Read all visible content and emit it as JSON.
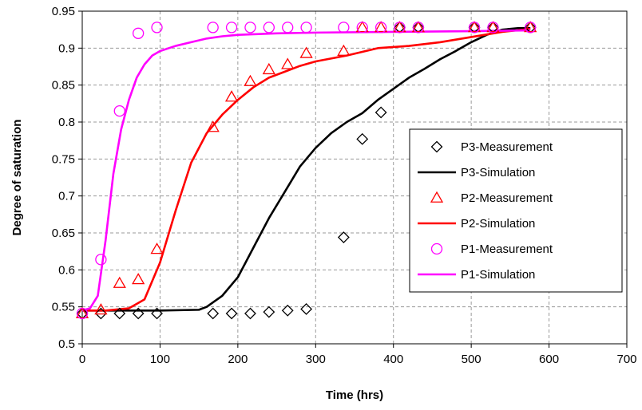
{
  "chart_data": {
    "type": "scatter",
    "title": "",
    "xlabel": "Time (hrs)",
    "ylabel": "Degree of saturation",
    "xlim": [
      0,
      700
    ],
    "ylim": [
      0.5,
      0.95
    ],
    "xticks": [
      0,
      100,
      200,
      300,
      400,
      500,
      600,
      700
    ],
    "yticks": [
      0.5,
      0.55,
      0.6,
      0.65,
      0.7,
      0.75,
      0.8,
      0.85,
      0.9,
      0.95
    ],
    "grid": true,
    "legend_position": "right",
    "series": [
      {
        "name": "P3-Measurement",
        "kind": "marker",
        "marker": "diamond",
        "color": "#000000",
        "x": [
          0,
          24,
          48,
          72,
          96,
          168,
          192,
          216,
          240,
          264,
          288,
          336,
          360,
          384,
          408,
          432,
          504,
          528,
          576
        ],
        "y": [
          0.541,
          0.541,
          0.541,
          0.541,
          0.541,
          0.541,
          0.541,
          0.541,
          0.543,
          0.545,
          0.547,
          0.644,
          0.777,
          0.813,
          0.928,
          0.928,
          0.928,
          0.928,
          0.928
        ]
      },
      {
        "name": "P3-Simulation",
        "kind": "line",
        "color": "#000000",
        "x": [
          0,
          50,
          100,
          150,
          160,
          180,
          200,
          220,
          240,
          260,
          280,
          300,
          320,
          340,
          360,
          380,
          400,
          420,
          440,
          460,
          480,
          500,
          520,
          540,
          560,
          576
        ],
        "y": [
          0.545,
          0.545,
          0.545,
          0.546,
          0.55,
          0.565,
          0.59,
          0.63,
          0.67,
          0.705,
          0.74,
          0.765,
          0.785,
          0.8,
          0.812,
          0.83,
          0.845,
          0.86,
          0.872,
          0.885,
          0.896,
          0.908,
          0.918,
          0.925,
          0.927,
          0.927
        ]
      },
      {
        "name": "P2-Measurement",
        "kind": "marker",
        "marker": "triangle",
        "color": "#ff0000",
        "x": [
          0,
          24,
          48,
          72,
          96,
          168,
          192,
          216,
          240,
          264,
          288,
          336,
          360,
          384,
          408,
          432,
          504,
          528,
          576
        ],
        "y": [
          0.541,
          0.546,
          0.582,
          0.587,
          0.628,
          0.793,
          0.834,
          0.855,
          0.871,
          0.878,
          0.893,
          0.896,
          0.928,
          0.928,
          0.928,
          0.928,
          0.928,
          0.928,
          0.928
        ]
      },
      {
        "name": "P2-Simulation",
        "kind": "line",
        "color": "#ff0000",
        "x": [
          0,
          30,
          60,
          80,
          100,
          120,
          140,
          160,
          180,
          200,
          220,
          240,
          260,
          280,
          300,
          340,
          380,
          420,
          460,
          500,
          540,
          576
        ],
        "y": [
          0.545,
          0.545,
          0.548,
          0.56,
          0.61,
          0.68,
          0.745,
          0.785,
          0.81,
          0.83,
          0.847,
          0.86,
          0.868,
          0.876,
          0.882,
          0.89,
          0.9,
          0.903,
          0.908,
          0.915,
          0.922,
          0.926
        ]
      },
      {
        "name": "P1-Measurement",
        "kind": "marker",
        "marker": "circle",
        "color": "#ff00ff",
        "x": [
          0,
          24,
          48,
          72,
          96,
          168,
          192,
          216,
          240,
          264,
          288,
          336,
          360,
          384,
          408,
          432,
          504,
          528,
          576
        ],
        "y": [
          0.541,
          0.614,
          0.815,
          0.92,
          0.928,
          0.928,
          0.928,
          0.928,
          0.928,
          0.928,
          0.928,
          0.928,
          0.928,
          0.928,
          0.928,
          0.928,
          0.928,
          0.928,
          0.928
        ]
      },
      {
        "name": "P1-Simulation",
        "kind": "line",
        "color": "#ff00ff",
        "x": [
          0,
          10,
          20,
          30,
          40,
          50,
          60,
          70,
          80,
          90,
          100,
          120,
          140,
          160,
          180,
          200,
          250,
          300,
          400,
          500,
          576
        ],
        "y": [
          0.545,
          0.548,
          0.565,
          0.64,
          0.73,
          0.79,
          0.83,
          0.86,
          0.878,
          0.89,
          0.896,
          0.903,
          0.908,
          0.913,
          0.916,
          0.918,
          0.92,
          0.921,
          0.922,
          0.923,
          0.924
        ]
      }
    ]
  }
}
